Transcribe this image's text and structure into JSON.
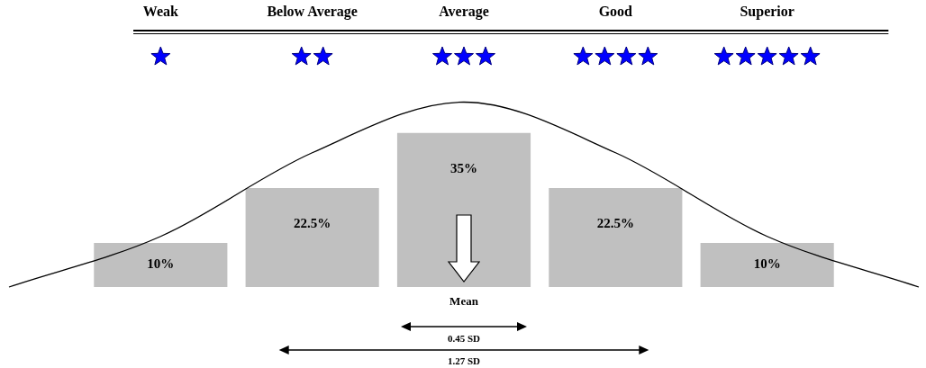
{
  "chart_data": {
    "type": "bar",
    "categories": [
      null,
      "Weak",
      "Below Average",
      "Average",
      "Good",
      "Superior",
      null
    ],
    "series": [
      {
        "color": "#c0c0c0",
        "values": [
          null,
          10,
          22.5,
          35,
          22.5,
          10,
          null
        ],
        "value_labels": [
          null,
          "10%",
          "22.5%",
          "35%",
          "22.5%",
          "10%",
          null
        ]
      },
      {
        "type": "line",
        "color": "#000000",
        "values": [
          0,
          11.5,
          30.5,
          42,
          30.5,
          11.5,
          0
        ]
      }
    ],
    "marker": "none",
    "tick_labels": "x",
    "grid": false,
    "annotations": [
      "Mean",
      "0.45 SD",
      "1.27 SD"
    ]
  }
}
